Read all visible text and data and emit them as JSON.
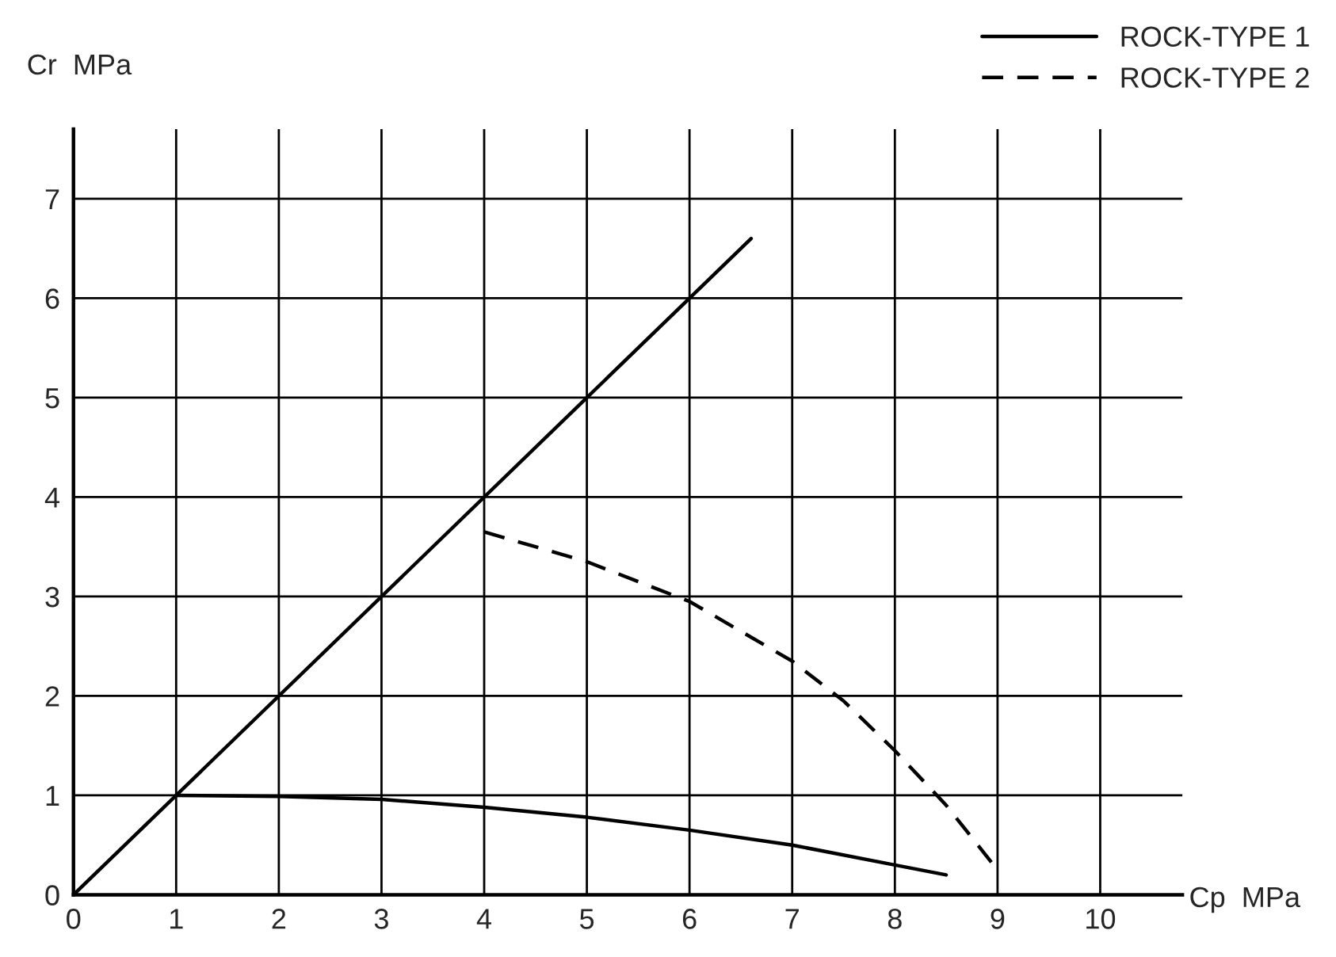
{
  "chart_data": {
    "type": "line",
    "xlabel": "Cp  MPa",
    "ylabel": "Cr  MPa",
    "xlim": [
      0,
      10.8
    ],
    "ylim": [
      0,
      7.7
    ],
    "xticks": [
      0,
      1,
      2,
      3,
      4,
      5,
      6,
      7,
      8,
      9,
      10
    ],
    "yticks": [
      0,
      1,
      2,
      3,
      4,
      5,
      6,
      7
    ],
    "grid": true,
    "legend": "top right",
    "marker": "none",
    "series": [
      {
        "color": "#000000",
        "line_style": "solid",
        "x": [
          0,
          6.6
        ],
        "values": [
          0,
          6.6
        ]
      },
      {
        "name": "ROCK-TYPE 1",
        "color": "#000000",
        "line_style": "solid",
        "x": [
          1,
          2,
          3,
          4,
          5,
          6,
          7,
          8,
          8.5
        ],
        "values": [
          1,
          0.99,
          0.96,
          0.88,
          0.78,
          0.65,
          0.5,
          0.3,
          0.2
        ]
      },
      {
        "name": "ROCK-TYPE 2",
        "color": "#000000",
        "line_style": "dashed",
        "x": [
          4,
          5,
          6,
          7,
          7.5,
          8,
          8.5,
          9
        ],
        "values": [
          3.65,
          3.35,
          2.95,
          2.35,
          1.95,
          1.45,
          0.9,
          0.25
        ]
      }
    ]
  }
}
